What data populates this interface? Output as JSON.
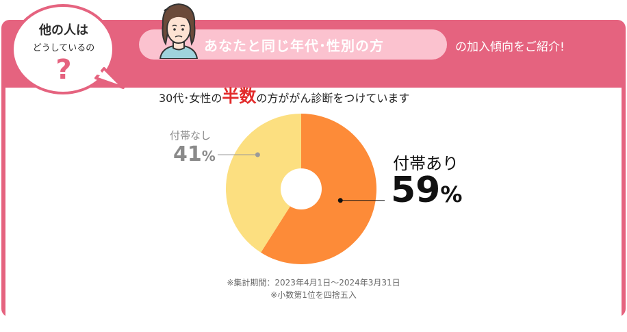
{
  "bubble": {
    "line1": "他の人は",
    "line2": "どうしているの",
    "mark": "?"
  },
  "header": {
    "highlight": "あなたと同じ年代･性別の方",
    "tail": "の加入傾向をご紹介!"
  },
  "subtitle": {
    "prefix": "30代･女性の",
    "highlight": "半数",
    "suffix": "の方ががん診断をつけています"
  },
  "labels": {
    "without": {
      "name": "付帯なし",
      "value": "41",
      "unit": "%"
    },
    "with": {
      "name": "付帯あり",
      "value": "59",
      "unit": "%"
    }
  },
  "notes": {
    "period": "※集計期間：2023年4月1日～2024年3月31日",
    "rounding": "※小数第1位を四捨五入"
  },
  "colors": {
    "frame": "#e5637f",
    "pill": "#fbc2cf",
    "with": "#fd8b38",
    "without": "#fcdf80",
    "highlight": "#e22b2b"
  },
  "chart_data": {
    "type": "pie",
    "categories": [
      "付帯あり",
      "付帯なし"
    ],
    "values": [
      59,
      41
    ],
    "donut": true
  }
}
